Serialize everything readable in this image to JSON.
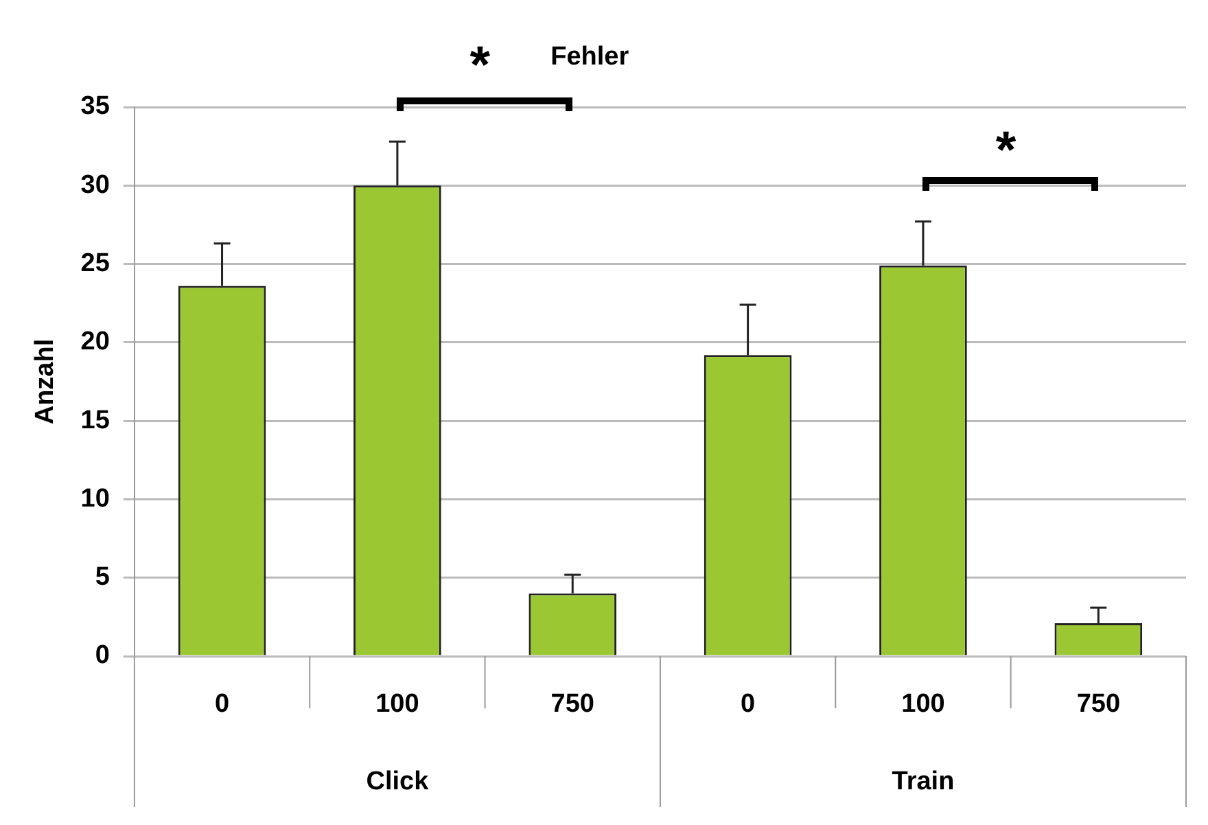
{
  "chart_data": {
    "type": "bar",
    "ylabel": "Anzahl",
    "categories": [
      "0",
      "100",
      "750",
      "0",
      "100",
      "750"
    ],
    "values": [
      23.6,
      30,
      4,
      19.2,
      24.9,
      2.1
    ],
    "errors": [
      [
        23.6,
        26.3
      ],
      [
        30,
        32.8
      ],
      [
        4,
        5.2
      ],
      [
        19.2,
        22.4
      ],
      [
        24.9,
        27.7
      ],
      [
        2.1,
        3.1
      ]
    ],
    "color": "#9bc733",
    "ylim": [
      0,
      35
    ],
    "yticks": [
      0,
      5,
      10,
      15,
      20,
      25,
      30,
      35
    ],
    "grid": "y",
    "annotations": [
      "*",
      "Fehler",
      "*",
      "Click",
      "Train"
    ]
  }
}
